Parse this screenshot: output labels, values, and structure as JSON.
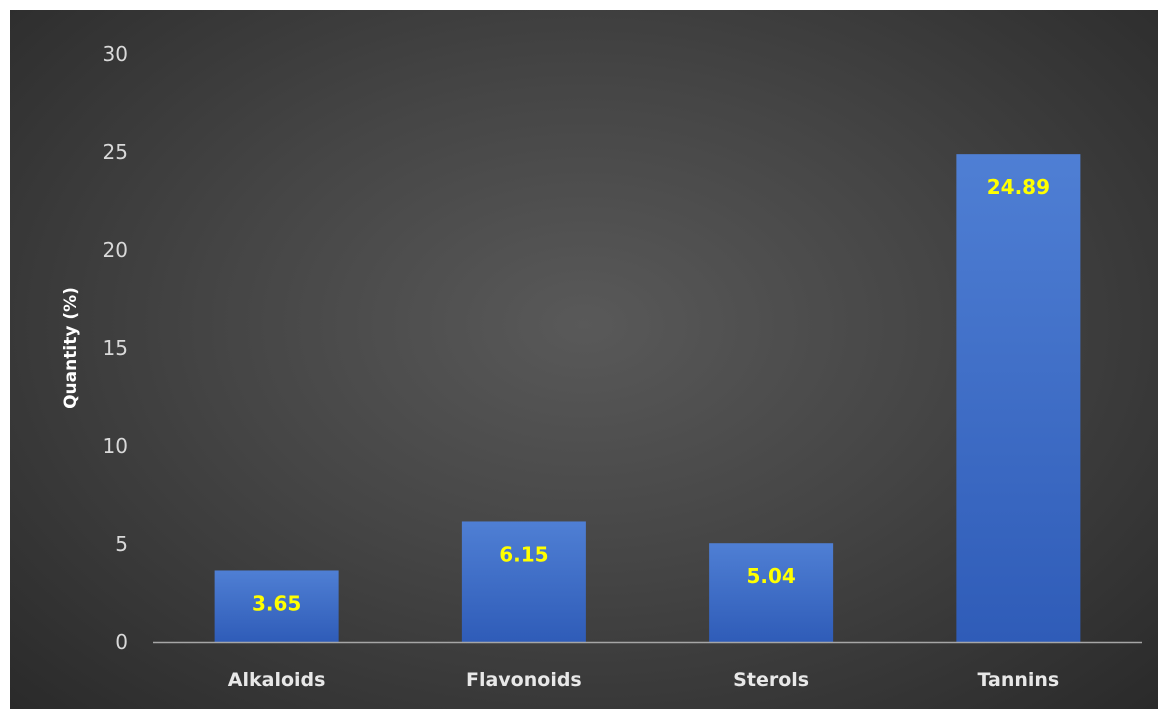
{
  "chart_data": {
    "type": "bar",
    "title": "",
    "xlabel": "",
    "ylabel": "Quantity (%)",
    "categories": [
      "Alkaloids",
      "Flavonoids",
      "Sterols",
      "Tannins"
    ],
    "values": [
      3.65,
      6.15,
      5.04,
      24.89
    ],
    "data_labels": [
      "3.65",
      "6.15",
      "5.04",
      "24.89"
    ],
    "ylim": [
      0,
      30
    ],
    "yticks": [
      "0",
      "5",
      "10",
      "15",
      "20",
      "25",
      "30"
    ],
    "grid": false,
    "legend": "none",
    "colors": {
      "bar_top": "#4f7fd4",
      "bar_bottom": "#2f5cb8",
      "data_label": "#ffff00",
      "axis_line": "#a6a6a6",
      "background_center": "#595959",
      "background_edge": "#2a2a2a"
    }
  }
}
